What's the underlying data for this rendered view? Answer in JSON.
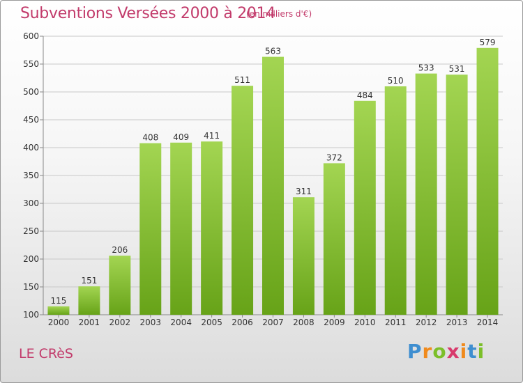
{
  "header": {
    "title": "Subventions Versées 2000 à 2014",
    "unit": "(en milliers d'€)"
  },
  "footer": {
    "commune": "LE CRèS",
    "logo": "Proxiti"
  },
  "colors": {
    "accent": "#c23b6b",
    "bar_light": "#9ed24a",
    "bar_dark": "#6aa51a"
  },
  "chart_data": {
    "type": "bar",
    "title": "Subventions Versées 2000 à 2014",
    "subtitle": "(en milliers d'€)",
    "xlabel": "",
    "ylabel": "",
    "categories": [
      "2000",
      "2001",
      "2002",
      "2003",
      "2004",
      "2005",
      "2006",
      "2007",
      "2008",
      "2009",
      "2010",
      "2011",
      "2012",
      "2013",
      "2014"
    ],
    "values": [
      115,
      151,
      206,
      408,
      409,
      411,
      511,
      563,
      311,
      372,
      484,
      510,
      533,
      531,
      579
    ],
    "ylim": [
      100,
      600
    ],
    "yticks": [
      100,
      150,
      200,
      250,
      300,
      350,
      400,
      450,
      500,
      550,
      600
    ],
    "grid": true,
    "data_labels": true
  }
}
